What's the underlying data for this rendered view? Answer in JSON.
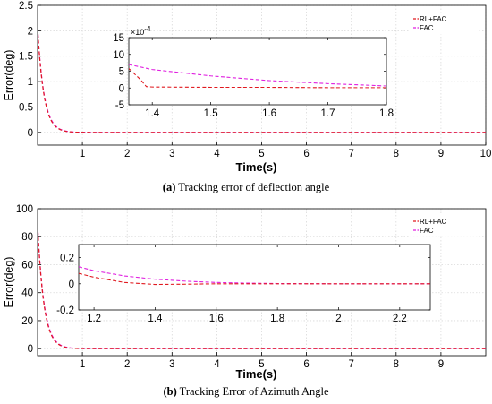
{
  "chart_data": [
    {
      "id": "a",
      "type": "line",
      "caption_tag": "(a)",
      "caption_text": "Tracking error of deflection angle",
      "xlabel": "Time(s)",
      "ylabel": "Error(deg)",
      "xlim": [
        0,
        10
      ],
      "ylim": [
        -0.25,
        2.5
      ],
      "xticks": [
        1,
        2,
        3,
        4,
        5,
        6,
        7,
        8,
        9,
        10
      ],
      "yticks": [
        0,
        0.5,
        1,
        1.5,
        2,
        2.5
      ],
      "ytick_labels": [
        "0",
        "0.5",
        "1",
        "1.5",
        "2",
        "2.5"
      ],
      "grid": true,
      "legend_position": "top-right",
      "series": [
        {
          "name": "RL+FAC",
          "color": "#e0191f",
          "initial": 2.05,
          "tau": 0.14,
          "x": [
            0,
            0.1,
            0.2,
            0.3,
            0.4,
            0.5,
            0.6,
            0.8,
            1.0,
            2,
            10
          ],
          "y": [
            2.05,
            1.0,
            0.49,
            0.24,
            0.12,
            0.058,
            0.028,
            0.007,
            0.0016,
            0.0005,
            0
          ]
        },
        {
          "name": "FAC",
          "color": "#e01fe0",
          "initial": 2.05,
          "tau": 0.145,
          "x": [
            0,
            0.1,
            0.2,
            0.3,
            0.4,
            0.5,
            0.6,
            0.8,
            1.0,
            2,
            10
          ],
          "y": [
            2.05,
            1.03,
            0.52,
            0.26,
            0.13,
            0.066,
            0.033,
            0.009,
            0.002,
            0.0006,
            0
          ]
        }
      ],
      "inset": {
        "xlim": [
          1.36,
          1.8
        ],
        "ylim": [
          -0.0005,
          0.0015
        ],
        "xticks": [
          1.4,
          1.5,
          1.6,
          1.7,
          1.8
        ],
        "xtick_labels": [
          "1.4",
          "1.5",
          "1.6",
          "1.7",
          "1.8"
        ],
        "yticks": [
          -0.0005,
          0,
          0.0005,
          0.001,
          0.0015
        ],
        "ytick_labels": [
          "-5",
          "0",
          "5",
          "10",
          "15"
        ],
        "multiplier_base": "×10",
        "multiplier_exp": "-4",
        "series": [
          {
            "name": "RL+FAC",
            "x": [
              1.36,
              1.38,
              1.39,
              1.4,
              1.5,
              1.6,
              1.7,
              1.8
            ],
            "y": [
              0.00058,
              0.00025,
              4e-05,
              3e-05,
              2e-05,
              2e-05,
              1e-05,
              1e-05
            ]
          },
          {
            "name": "FAC",
            "x": [
              1.36,
              1.4,
              1.5,
              1.6,
              1.7,
              1.8
            ],
            "y": [
              0.0007,
              0.00055,
              0.00036,
              0.00022,
              0.00013,
              6e-05
            ]
          }
        ]
      }
    },
    {
      "id": "b",
      "type": "line",
      "caption_tag": "(b)",
      "caption_text": "Tracking Error of Azimuth Angle",
      "xlabel": "Time(s)",
      "ylabel": "Error(deg)",
      "xlim": [
        0,
        10
      ],
      "ylim": [
        -5,
        100
      ],
      "xticks": [
        1,
        2,
        3,
        4,
        5,
        6,
        7,
        8,
        9
      ],
      "yticks": [
        0,
        20,
        40,
        60,
        80,
        100
      ],
      "ytick_labels": [
        "0",
        "20",
        "40",
        "60",
        "80",
        "100"
      ],
      "grid": true,
      "legend_position": "top-right",
      "series": [
        {
          "name": "RL+FAC",
          "color": "#e0191f",
          "initial": 88,
          "tau": 0.14,
          "x": [
            0,
            0.1,
            0.2,
            0.3,
            0.4,
            0.5,
            0.6,
            0.8,
            1.0,
            2,
            10
          ],
          "y": [
            88,
            43,
            21,
            10.3,
            5.0,
            2.5,
            1.2,
            0.3,
            0.07,
            0.02,
            0
          ]
        },
        {
          "name": "FAC",
          "color": "#e01fe0",
          "initial": 88,
          "tau": 0.145,
          "x": [
            0,
            0.1,
            0.2,
            0.3,
            0.4,
            0.5,
            0.6,
            0.8,
            1.0,
            2,
            10
          ],
          "y": [
            88,
            44,
            22,
            11,
            5.5,
            2.8,
            1.4,
            0.35,
            0.09,
            0.03,
            0
          ]
        }
      ],
      "inset": {
        "xlim": [
          1.15,
          2.3
        ],
        "ylim": [
          -0.2,
          0.3
        ],
        "xticks": [
          1.2,
          1.4,
          1.6,
          1.8,
          2,
          2.2
        ],
        "xtick_labels": [
          "1.2",
          "1.4",
          "1.6",
          "1.8",
          "2",
          "2.2"
        ],
        "yticks": [
          -0.2,
          0,
          0.2
        ],
        "ytick_labels": [
          "-0.2",
          "0",
          "0.2"
        ],
        "multiplier_base": "",
        "multiplier_exp": "",
        "series": [
          {
            "name": "RL+FAC",
            "x": [
              1.15,
              1.2,
              1.3,
              1.4,
              1.5,
              1.6,
              1.8,
              2.0,
              2.3
            ],
            "y": [
              0.08,
              0.05,
              0.01,
              -0.005,
              -0.003,
              0.0,
              0.0,
              0.0,
              0.0
            ]
          },
          {
            "name": "FAC",
            "x": [
              1.15,
              1.2,
              1.3,
              1.4,
              1.5,
              1.6,
              1.7,
              1.8,
              2.0,
              2.3
            ],
            "y": [
              0.13,
              0.1,
              0.06,
              0.035,
              0.02,
              0.01,
              0.005,
              0.002,
              0.0,
              0.0
            ]
          }
        ]
      }
    }
  ]
}
